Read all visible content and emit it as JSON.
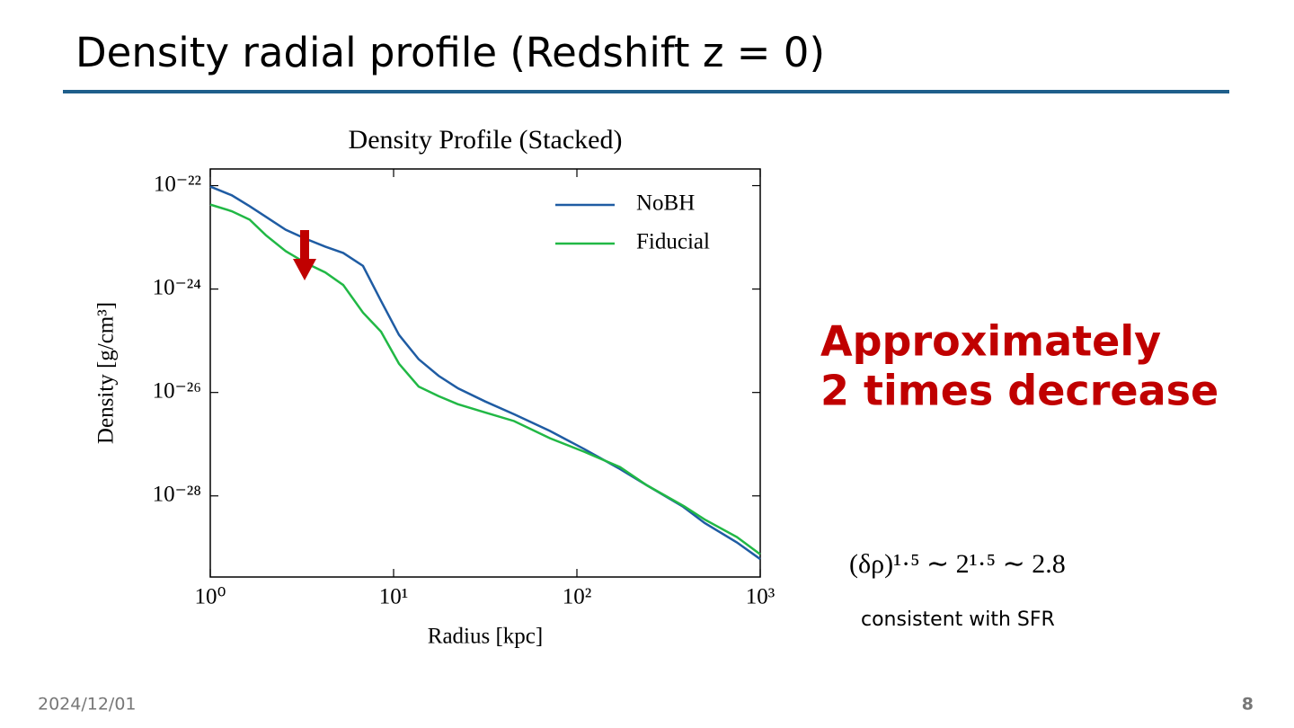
{
  "slide": {
    "title": "Density radial profile (Redshift z = 0)",
    "highlight": [
      "Approximately",
      "2 times decrease"
    ],
    "formula": "(δρ)¹·⁵ ∼ 2¹·⁵ ∼ 2.8",
    "note": "consistent with SFR",
    "date": "2024/12/01",
    "page": "8"
  },
  "chart_data": {
    "type": "line",
    "title": "Density Profile (Stacked)",
    "x_label": "Radius [kpc]",
    "y_label": "Density [g/cm³]",
    "log_x": true,
    "log_y": true,
    "legend": "upper right",
    "x": [
      1,
      1.31,
      1.64,
      2.01,
      2.58,
      3.31,
      4.24,
      5.31,
      6.81,
      8.54,
      10.7,
      13.7,
      17.6,
      22.5,
      31.6,
      45.4,
      71.3,
      110,
      172,
      241,
      379,
      497,
      746,
      1000
    ],
    "series": [
      {
        "name": "NoBH",
        "color": "#1f5ca3",
        "values": [
          9.6e-23,
          6.5e-23,
          4e-23,
          2.5e-23,
          1.4e-23,
          9.4e-24,
          6.6e-24,
          5e-24,
          2.8e-24,
          5.9e-25,
          1.3e-25,
          4.4e-26,
          2.1e-26,
          1.2e-26,
          6.7e-27,
          3.8e-27,
          1.8e-27,
          8e-28,
          3.3e-28,
          1.6e-28,
          6.2e-29,
          3e-29,
          1.26e-29,
          6e-30
        ]
      },
      {
        "name": "Fiducial",
        "color": "#21b845",
        "values": [
          4.3e-23,
          3.2e-23,
          2.2e-23,
          1.1e-23,
          5.4e-24,
          3.2e-24,
          2.1e-24,
          1.2e-24,
          3.5e-25,
          1.5e-25,
          3.6e-26,
          1.3e-26,
          8.5e-27,
          5.9e-27,
          4.1e-27,
          2.8e-27,
          1.3e-27,
          7.1e-28,
          3.6e-28,
          1.6e-28,
          6.5e-29,
          3.5e-29,
          1.6e-29,
          7.4e-30
        ]
      }
    ],
    "xlim": [
      1,
      1000
    ],
    "xticks": [
      {
        "value": 1,
        "label": "10⁰"
      },
      {
        "value": 10,
        "label": "10¹"
      },
      {
        "value": 100,
        "label": "10²"
      },
      {
        "value": 1000,
        "label": "10³"
      }
    ],
    "ylim": [
      2.7e-30,
      2.1e-22
    ],
    "yticks": [
      {
        "value": 1e-22,
        "label": "10⁻²²"
      },
      {
        "value": 1e-24,
        "label": "10⁻²⁴"
      },
      {
        "value": 1e-26,
        "label": "10⁻²⁶"
      },
      {
        "value": 1e-28,
        "label": "10⁻²⁸"
      }
    ]
  }
}
